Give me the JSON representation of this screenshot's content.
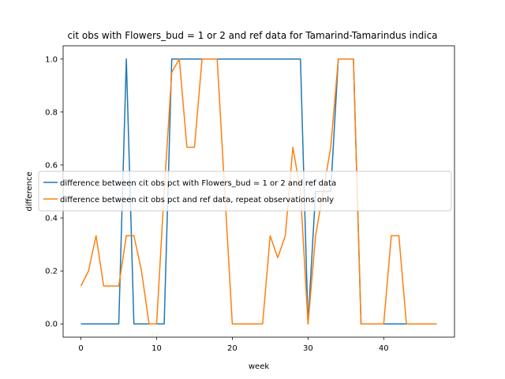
{
  "chart_data": {
    "type": "line",
    "title": "cit obs with Flowers_bud = 1 or 2 and ref data for Tamarind-Tamarindus indica",
    "xlabel": "week",
    "ylabel": "difference",
    "xlim": [
      -2.35,
      49.35
    ],
    "ylim": [
      -0.05,
      1.05
    ],
    "xticks": [
      0,
      10,
      20,
      30,
      40
    ],
    "yticks": [
      0.0,
      0.2,
      0.4,
      0.6,
      0.8,
      1.0
    ],
    "xtick_labels": [
      "0",
      "10",
      "20",
      "30",
      "40"
    ],
    "ytick_labels": [
      "0.0",
      "0.2",
      "0.4",
      "0.6",
      "0.8",
      "1.0"
    ],
    "legend_position": "center-right",
    "series": [
      {
        "name": "difference between cit obs pct with Flowers_bud = 1 or 2 and ref data",
        "color": "#1f77b4",
        "x": [
          0,
          1,
          2,
          3,
          4,
          5,
          6,
          7,
          8,
          9,
          10,
          11,
          12,
          13,
          14,
          15,
          16,
          17,
          18,
          19,
          20,
          21,
          22,
          23,
          24,
          25,
          26,
          27,
          28,
          29,
          30,
          31,
          32,
          33,
          34,
          35,
          36,
          37,
          38,
          39,
          40,
          41,
          42,
          43,
          44,
          45,
          46,
          47
        ],
        "y": [
          0,
          0,
          0,
          0,
          0,
          0,
          1,
          0,
          0,
          0,
          0,
          0,
          1,
          1,
          1,
          1,
          1,
          1,
          1,
          1,
          1,
          1,
          1,
          1,
          1,
          1,
          1,
          1,
          1,
          1,
          0,
          0.5,
          0.5,
          0.5,
          1,
          1,
          1,
          0,
          0,
          0,
          0,
          0,
          0,
          0,
          0,
          0,
          0,
          0
        ]
      },
      {
        "name": "difference between cit obs pct and ref data, repeat observations only",
        "color": "#ff7f0e",
        "x": [
          0,
          1,
          2,
          3,
          4,
          5,
          6,
          7,
          8,
          9,
          10,
          11,
          12,
          13,
          14,
          15,
          16,
          17,
          18,
          19,
          20,
          21,
          22,
          23,
          24,
          25,
          26,
          27,
          28,
          29,
          30,
          31,
          32,
          33,
          34,
          35,
          36,
          37,
          38,
          39,
          40,
          41,
          42,
          43,
          44,
          45,
          46,
          47
        ],
        "y": [
          0.143,
          0.2,
          0.333,
          0.143,
          0.143,
          0.143,
          0.333,
          0.333,
          0.2,
          0,
          0,
          0.5,
          0.95,
          1,
          0.667,
          0.667,
          1,
          1,
          1,
          0.5,
          0,
          0,
          0,
          0,
          0,
          0.333,
          0.25,
          0.333,
          0.667,
          0.5,
          0,
          0.333,
          0.5,
          0.667,
          1,
          1,
          1,
          0,
          0,
          0,
          0,
          0.333,
          0.333,
          0,
          0,
          0,
          0,
          0
        ]
      }
    ]
  }
}
